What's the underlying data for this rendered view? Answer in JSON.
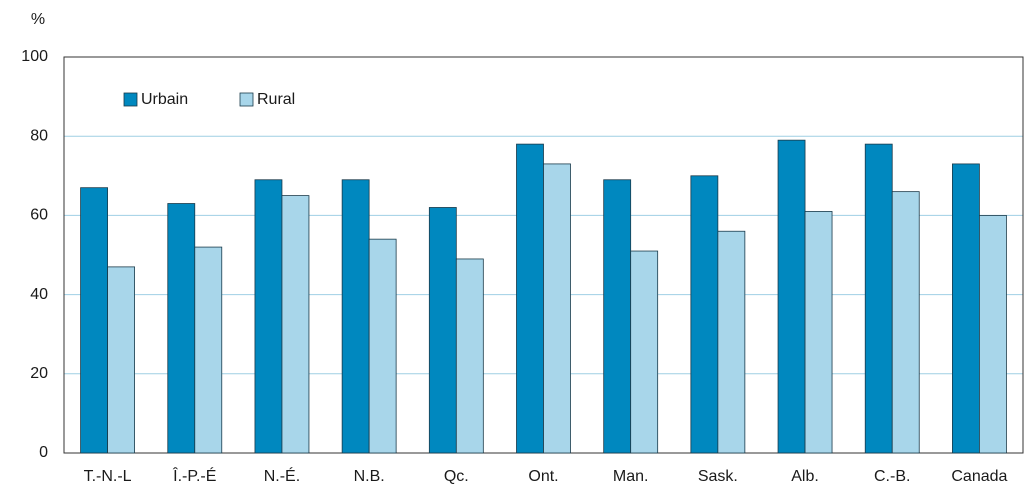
{
  "chart_data": {
    "type": "bar",
    "y_label": "%",
    "categories": [
      "T.-N.-L",
      "Î.-P.-É",
      "N.-É.",
      "N.B.",
      "Qc.",
      "Ont.",
      "Man.",
      "Sask.",
      "Alb.",
      "C.-B.",
      "Canada"
    ],
    "series": [
      {
        "name": "Urbain",
        "color": "#0088bf",
        "values": [
          67,
          63,
          69,
          69,
          62,
          78,
          69,
          70,
          79,
          78,
          73
        ]
      },
      {
        "name": "Rural",
        "color": "#a8d6ea",
        "values": [
          47,
          52,
          65,
          54,
          49,
          73,
          51,
          56,
          61,
          66,
          60
        ]
      }
    ],
    "ylim": [
      0,
      100
    ],
    "yticks": [
      0,
      20,
      40,
      60,
      80,
      100
    ],
    "grid": true,
    "legend": "upper left"
  }
}
